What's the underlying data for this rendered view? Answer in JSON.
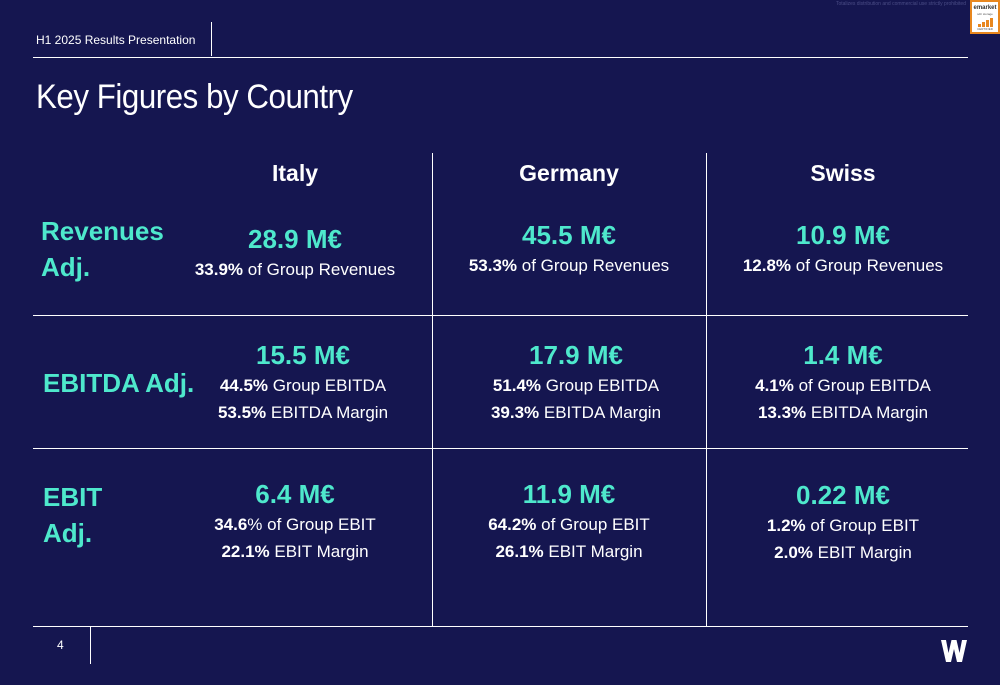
{
  "disclaimer": "Totalizes distribution and commercial use strictly prohibited",
  "badge": {
    "line1": "emarket",
    "line2": "sdir storage",
    "line3": "CERTIFIED"
  },
  "header": {
    "label": "H1 2025 Results Presentation"
  },
  "title": "Key Figures by Country",
  "columns": [
    "Italy",
    "Germany",
    "Swiss"
  ],
  "rows": [
    {
      "label_line1": "Revenues",
      "label_line2": "Adj.",
      "cells": [
        {
          "value": "28.9 M€",
          "lines": [
            {
              "bold": "33.9%",
              "text": " of Group Revenues"
            }
          ]
        },
        {
          "value": "45.5 M€",
          "lines": [
            {
              "bold": "53.3%",
              "text": " of Group Revenues"
            }
          ]
        },
        {
          "value": "10.9 M€",
          "lines": [
            {
              "bold": "12.8%",
              "text": " of Group Revenues"
            }
          ]
        }
      ]
    },
    {
      "label_line1": "EBITDA Adj.",
      "label_line2": "",
      "cells": [
        {
          "value": "15.5 M€",
          "lines": [
            {
              "bold": "44.5%",
              "text": " Group EBITDA"
            },
            {
              "bold": "53.5%",
              "text": " EBITDA Margin"
            }
          ]
        },
        {
          "value": "17.9 M€",
          "lines": [
            {
              "bold": "51.4%",
              "text": " Group EBITDA"
            },
            {
              "bold": "39.3%",
              "text": " EBITDA Margin"
            }
          ]
        },
        {
          "value": "1.4 M€",
          "lines": [
            {
              "bold": "4.1%",
              "text": " of Group EBITDA"
            },
            {
              "bold": "13.3%",
              "text": " EBITDA Margin"
            }
          ]
        }
      ]
    },
    {
      "label_line1": "EBIT",
      "label_line2": "Adj.",
      "cells": [
        {
          "value": "6.4 M€",
          "lines": [
            {
              "bold": "34.6",
              "text": "% of Group EBIT"
            },
            {
              "bold": "22.1%",
              "text": " EBIT Margin"
            }
          ]
        },
        {
          "value": "11.9 M€",
          "lines": [
            {
              "bold": "64.2%",
              "text": " of Group EBIT"
            },
            {
              "bold": "26.1%",
              "text": " EBIT Margin"
            }
          ]
        },
        {
          "value": "0.22 M€",
          "lines": [
            {
              "bold": "1.2%",
              "text": " of Group EBIT"
            },
            {
              "bold": "2.0%",
              "text": " EBIT Margin"
            }
          ]
        }
      ]
    }
  ],
  "footer": {
    "page_number": "4",
    "logo_letter": "W"
  },
  "colors": {
    "background": "#151650",
    "accent": "#4ee8cc",
    "text": "#ffffff",
    "badge_border": "#e8871e"
  }
}
